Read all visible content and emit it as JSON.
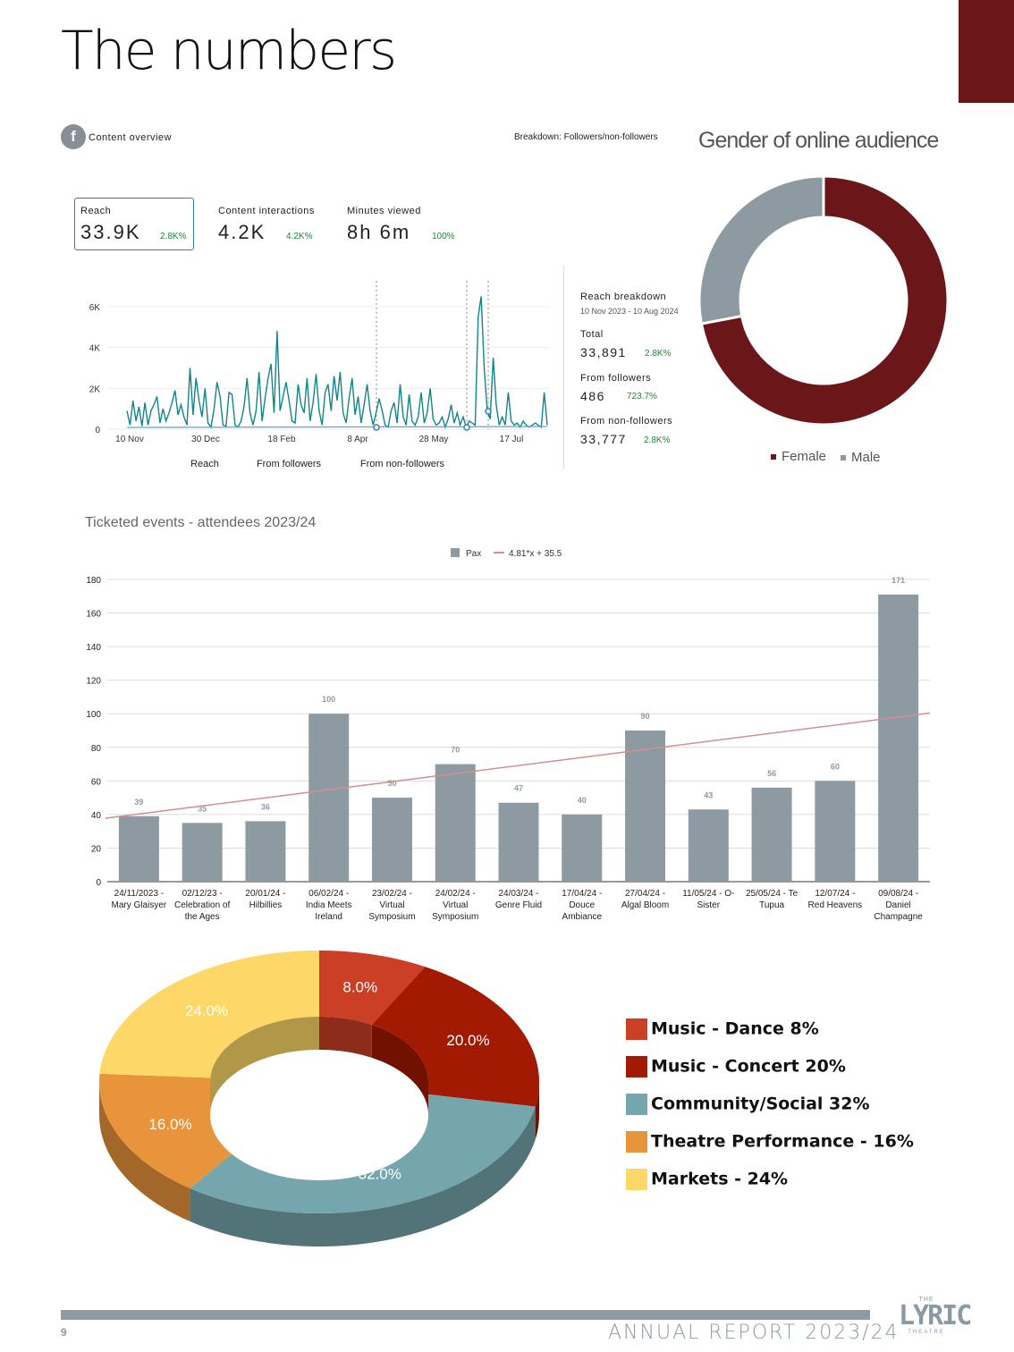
{
  "page_title": "The numbers",
  "page_number": "9",
  "footer": "ANNUAL REPORT 2023/24",
  "logo": "LYRIC",
  "colors": {
    "maroon": "#6b1719",
    "grey": "#8e9aa1",
    "teal": "#12858a",
    "blue": "#5aa5d6"
  },
  "content_overview": {
    "label": "Content overview",
    "icon": "facebook-icon",
    "breakdown": "Breakdown: Followers/non-followers",
    "metrics": [
      {
        "label": "Reach",
        "value": "33.9K",
        "change": "2.8K%"
      },
      {
        "label": "Content interactions",
        "value": "4.2K",
        "change": "4.2K%"
      },
      {
        "label": "Minutes viewed",
        "value": "8h 6m",
        "change": "100%"
      }
    ],
    "reach_breakdown": {
      "title": "Reach breakdown",
      "date_range": "10 Nov 2023 - 10 Aug 2024",
      "rows": [
        {
          "label": "Total",
          "value": "33,891",
          "change": "2.8K%"
        },
        {
          "label": "From followers",
          "value": "486",
          "change": "723.7%"
        },
        {
          "label": "From non-followers",
          "value": "33,777",
          "change": "2.8K%"
        }
      ]
    },
    "legend": [
      "Reach",
      "From followers",
      "From non-followers"
    ]
  },
  "chart_data": [
    {
      "type": "line",
      "x_ticks": [
        "10 Nov",
        "30 Dec",
        "18 Feb",
        "8 Apr",
        "28 May",
        "17 Jul"
      ],
      "y_ticks": [
        "0",
        "2K",
        "4K",
        "6K"
      ],
      "ylim": [
        0,
        7000
      ],
      "series": [
        {
          "name": "Reach",
          "values": [
            900,
            200,
            1400,
            400,
            1100,
            150,
            1300,
            200,
            900,
            1200,
            1600,
            300,
            1000,
            400,
            800,
            1300,
            1900,
            700,
            1200,
            600,
            200,
            3000,
            700,
            2500,
            1400,
            600,
            2000,
            300,
            100,
            1000,
            2300,
            1600,
            200,
            150,
            1800,
            1700,
            200,
            100,
            400,
            1100,
            2500,
            800,
            200,
            900,
            2800,
            400,
            1500,
            2500,
            3200,
            800,
            4800,
            900,
            1600,
            2300,
            1400,
            400,
            300,
            2200,
            1200,
            800,
            2500,
            400,
            1300,
            2700,
            900,
            200,
            1800,
            2200,
            900,
            2600,
            1400,
            2800,
            800,
            300,
            1500,
            2500,
            700,
            1600,
            300,
            1200,
            2200,
            900,
            200,
            800,
            1500,
            900,
            200,
            100,
            900,
            1300,
            300,
            2200,
            600,
            200,
            1700,
            400,
            200,
            600,
            1800,
            300,
            800,
            2000,
            500,
            200,
            300,
            600,
            100,
            500,
            1200,
            300,
            800,
            200,
            600,
            100,
            400,
            300,
            200,
            5500,
            6500,
            3000,
            900,
            500,
            3500,
            1200,
            200,
            600,
            200,
            1800,
            400,
            200,
            300,
            100,
            400,
            200,
            100,
            200,
            300,
            200,
            100,
            1800,
            200
          ]
        }
      ]
    },
    {
      "type": "donut",
      "title": "Gender of online audience",
      "categories": [
        "Female",
        "Male"
      ],
      "values": [
        72,
        28
      ],
      "colors": [
        "#6b1719",
        "#8e9aa1"
      ]
    },
    {
      "type": "bar",
      "title": "Ticketed events - attendees 2023/24",
      "legend": [
        "Pax",
        "4.81*x + 35.5"
      ],
      "categories": [
        [
          "24/11/2023 -",
          "Mary Glaisyer"
        ],
        [
          "02/12/23 -",
          "Celebration of",
          "the Ages"
        ],
        [
          "20/01/24 -",
          "Hilbillies"
        ],
        [
          "06/02/24 -",
          "India Meets",
          "Ireland"
        ],
        [
          "23/02/24 -",
          "Virtual",
          "Symposium"
        ],
        [
          "24/02/24 -",
          "Virtual",
          "Symposium"
        ],
        [
          "24/03/24 -",
          "Genre Fluid"
        ],
        [
          "17/04/24 -",
          "Douce",
          "Ambiance"
        ],
        [
          "27/04/24 -",
          "Algal Bloom"
        ],
        [
          "11/05/24 - O-",
          "Sister"
        ],
        [
          "25/05/24 - Te",
          "Tupua"
        ],
        [
          "12/07/24 -",
          "Red Heavens"
        ],
        [
          "09/08/24 -",
          "Daniel",
          "Champagne"
        ]
      ],
      "values": [
        39,
        35,
        36,
        100,
        50,
        70,
        47,
        40,
        90,
        43,
        56,
        60,
        171
      ],
      "y_ticks": [
        0,
        20,
        40,
        60,
        80,
        100,
        120,
        140,
        160,
        180
      ],
      "ylim": [
        0,
        180
      ],
      "trend": {
        "slope": 4.81,
        "intercept": 35.5
      }
    },
    {
      "type": "pie",
      "categories": [
        "Music - Dance 8%",
        "Music - Concert 20%",
        "Community/Social 32%",
        "Theatre Performance - 16%",
        "Markets - 24%"
      ],
      "values": [
        8,
        20,
        32,
        16,
        24
      ],
      "labels": [
        "8.0%",
        "20.0%",
        "32.0%",
        "16.0%",
        "24.0%"
      ],
      "colors": [
        "#cc3f27",
        "#a21a02",
        "#76a6ad",
        "#e8943a",
        "#fdd868"
      ],
      "side_colors": [
        "#8e2c1b",
        "#711201",
        "#527479",
        "#a26729",
        "#b19748"
      ]
    }
  ]
}
